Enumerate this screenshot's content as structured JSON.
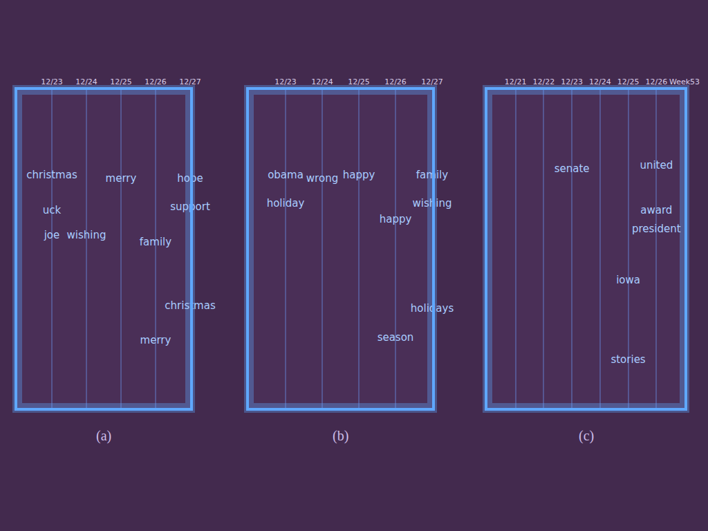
{
  "chart_data": [
    {
      "type": "text",
      "title": "(a)",
      "categories": [
        null,
        "12/23",
        "12/24",
        "12/25",
        "12/26",
        "12/27"
      ],
      "labels": [
        {
          "text": "christmas",
          "x": "12/23",
          "y": 7.3
        },
        {
          "text": "merry",
          "x": "12/25",
          "y": 7.2
        },
        {
          "text": "hope",
          "x": "12/27",
          "y": 7.2
        },
        {
          "text": "uck",
          "x": "12/23",
          "y": 6.2
        },
        {
          "text": "support",
          "x": "12/27",
          "y": 6.3
        },
        {
          "text": "joe",
          "x": "12/23",
          "y": 5.4
        },
        {
          "text": "wishing",
          "x": "12/24",
          "y": 5.4
        },
        {
          "text": "family",
          "x": "12/26",
          "y": 5.2
        },
        {
          "text": "christmas",
          "x": "12/27",
          "y": 3.2
        },
        {
          "text": "merry",
          "x": "12/26",
          "y": 2.1
        }
      ],
      "ylim": [
        0,
        10
      ],
      "tick_labels": "x",
      "grid": true
    },
    {
      "type": "text",
      "title": "(b)",
      "categories": [
        null,
        "12/23",
        "12/24",
        "12/25",
        "12/26",
        "12/27"
      ],
      "labels": [
        {
          "text": "obama",
          "x": "12/23",
          "y": 7.3
        },
        {
          "text": "wrong",
          "x": "12/24",
          "y": 7.2
        },
        {
          "text": "happy",
          "x": "12/25",
          "y": 7.3
        },
        {
          "text": "family",
          "x": "12/27",
          "y": 7.3
        },
        {
          "text": "holiday",
          "x": "12/23",
          "y": 6.4
        },
        {
          "text": "wishing",
          "x": "12/27",
          "y": 6.4
        },
        {
          "text": "happy",
          "x": "12/26",
          "y": 5.9
        },
        {
          "text": "holidays",
          "x": "12/27",
          "y": 3.1
        },
        {
          "text": "season",
          "x": "12/26",
          "y": 2.2
        }
      ],
      "ylim": [
        0,
        10
      ],
      "tick_labels": "x",
      "grid": true
    },
    {
      "type": "text",
      "title": "(c)",
      "categories": [
        null,
        "12/21",
        "12/22",
        "12/23",
        "12/24",
        "12/25",
        "12/26",
        "Week53"
      ],
      "labels": [
        {
          "text": "senate",
          "x": "12/23",
          "y": 7.5
        },
        {
          "text": "united",
          "x": "12/26",
          "y": 7.6
        },
        {
          "text": "award",
          "x": "12/26",
          "y": 6.2
        },
        {
          "text": "president",
          "x": "12/26",
          "y": 5.6
        },
        {
          "text": "iowa",
          "x": "12/25",
          "y": 4.0
        },
        {
          "text": "stories",
          "x": "12/25",
          "y": 1.5
        }
      ],
      "ylim": [
        0,
        10
      ],
      "tick_labels": "x",
      "grid": true
    }
  ]
}
